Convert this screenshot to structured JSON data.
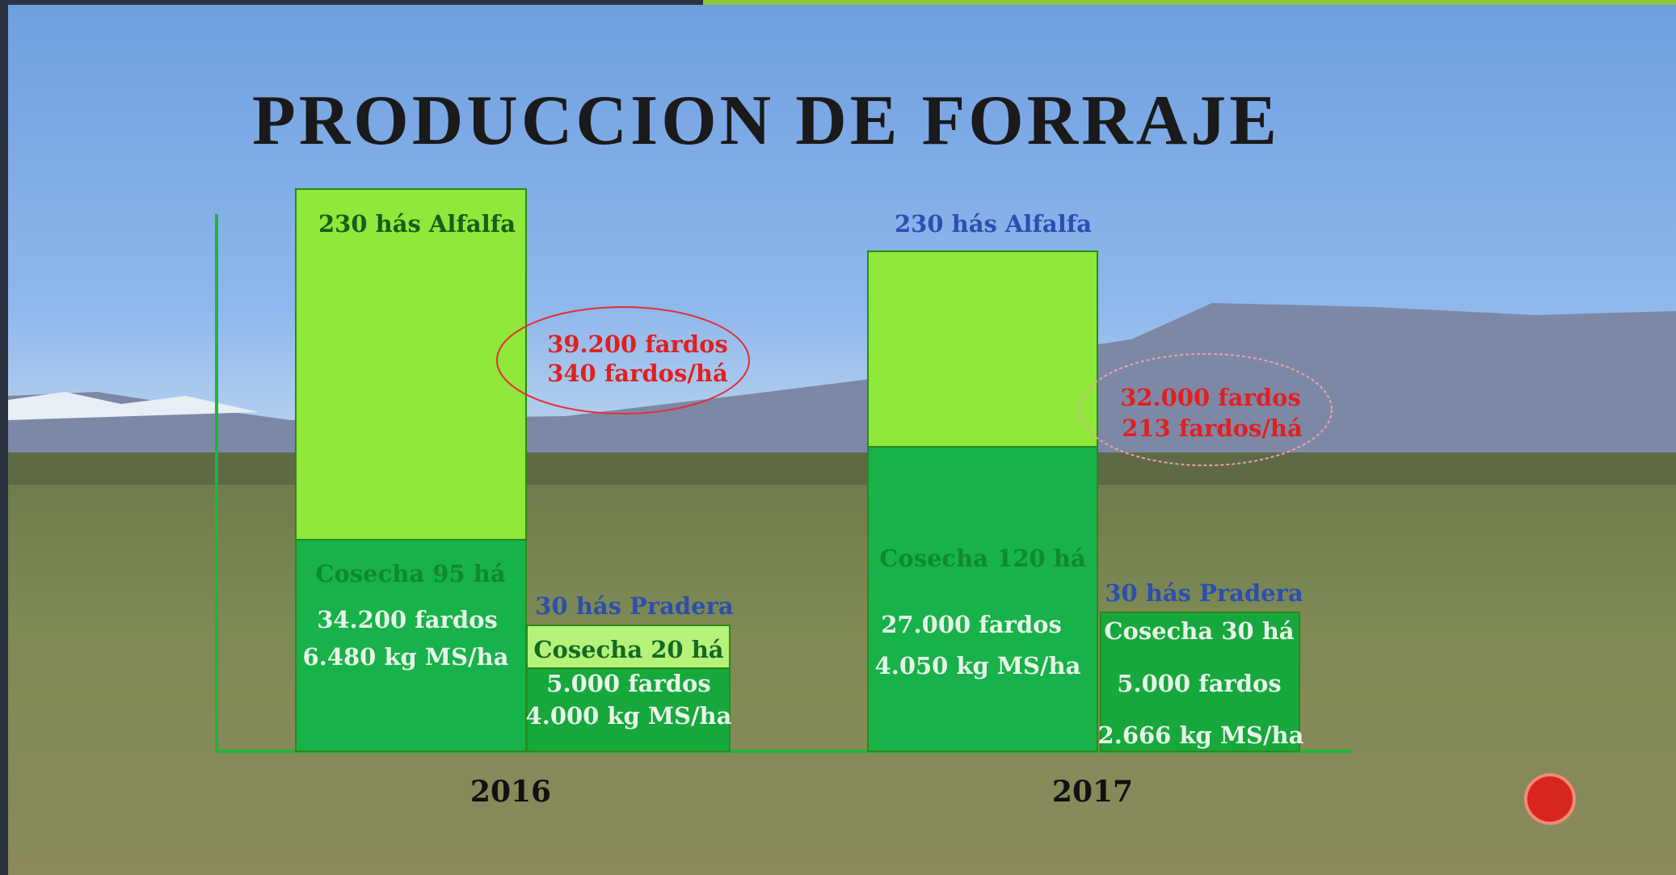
{
  "title": "PRODUCCION DE FORRAJE",
  "groups": [
    {
      "label": "2016",
      "alfalfa": {
        "area": "230 hás Alfalfa",
        "harvest": "Cosecha 95 há",
        "bales": "34.200 fardos",
        "yield": "6.480 kg MS/ha"
      },
      "pradera": {
        "area": "30 hás Pradera",
        "harvest": "Cosecha 20 há",
        "bales": "5.000 fardos",
        "yield": "4.000 kg MS/ha"
      },
      "total": {
        "bales": "39.200 fardos",
        "rate": "340 fardos/há"
      }
    },
    {
      "label": "2017",
      "alfalfa": {
        "area": "230 hás Alfalfa",
        "harvest": "Cosecha 120 há",
        "bales": "27.000 fardos",
        "yield": "4.050 kg MS/ha"
      },
      "pradera": {
        "area": "30 hás Pradera",
        "harvest": "Cosecha 30 há",
        "bales": "5.000 fardos",
        "yield": "2.666 kg MS/ha"
      },
      "total": {
        "bales": "32.000 fardos",
        "rate": "213 fardos/há"
      }
    }
  ]
}
